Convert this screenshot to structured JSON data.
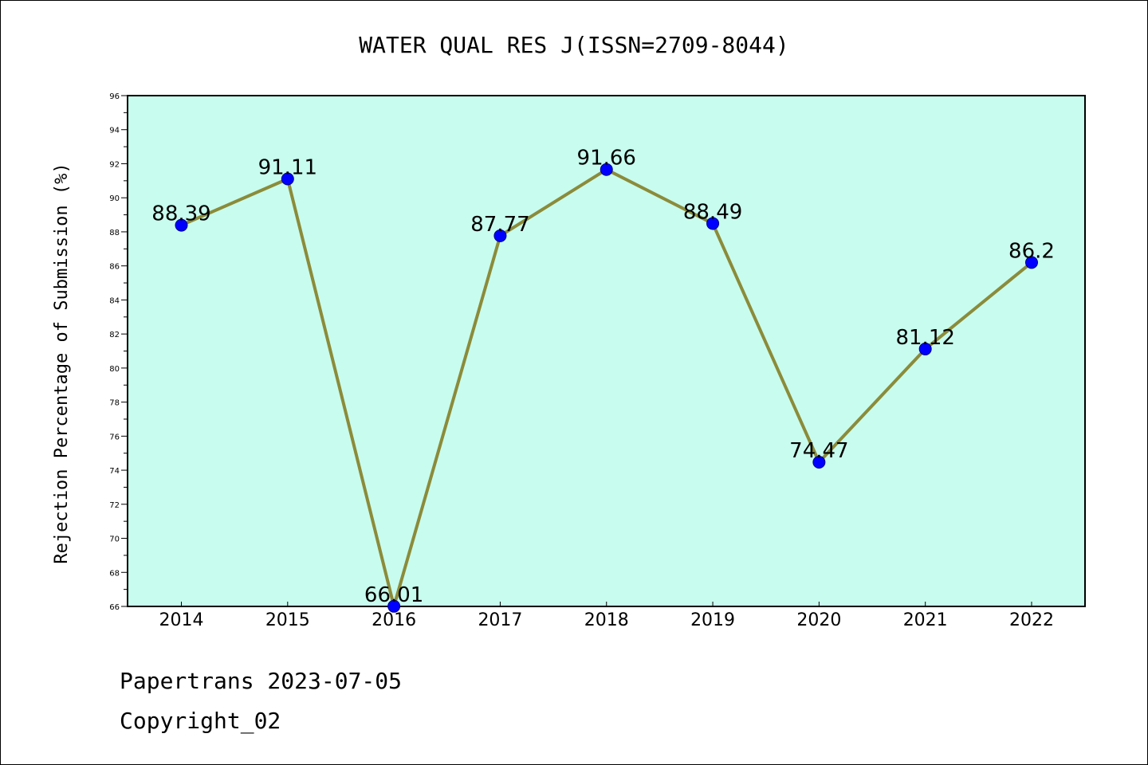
{
  "chart_data": {
    "type": "line",
    "title": "WATER QUAL RES J(ISSN=2709-8044)",
    "xlabel": "",
    "ylabel": "Rejection Percentage of Submission (%)",
    "categories": [
      "2014",
      "2015",
      "2016",
      "2017",
      "2018",
      "2019",
      "2020",
      "2021",
      "2022"
    ],
    "series": [
      {
        "values": [
          88.39,
          91.11,
          66.01,
          87.77,
          91.66,
          88.49,
          74.47,
          81.12,
          86.2
        ],
        "labels": [
          "88.39",
          "91.11",
          "66.01",
          "87.77",
          "91.66",
          "88.49",
          "74.47",
          "81.12",
          "86.2"
        ]
      }
    ],
    "ylim": [
      66,
      96
    ],
    "yticks": [
      "66",
      "68",
      "70",
      "72",
      "74",
      "76",
      "78",
      "80",
      "82",
      "84",
      "86",
      "88",
      "90",
      "92",
      "94",
      "96"
    ],
    "grid": false,
    "colors": {
      "plot_background": "#c8fcee",
      "line": "#8b8b3a",
      "marker": "#0000ff"
    }
  },
  "footer": {
    "line1": "Papertrans 2023-07-05",
    "line2": "Copyright_02"
  }
}
